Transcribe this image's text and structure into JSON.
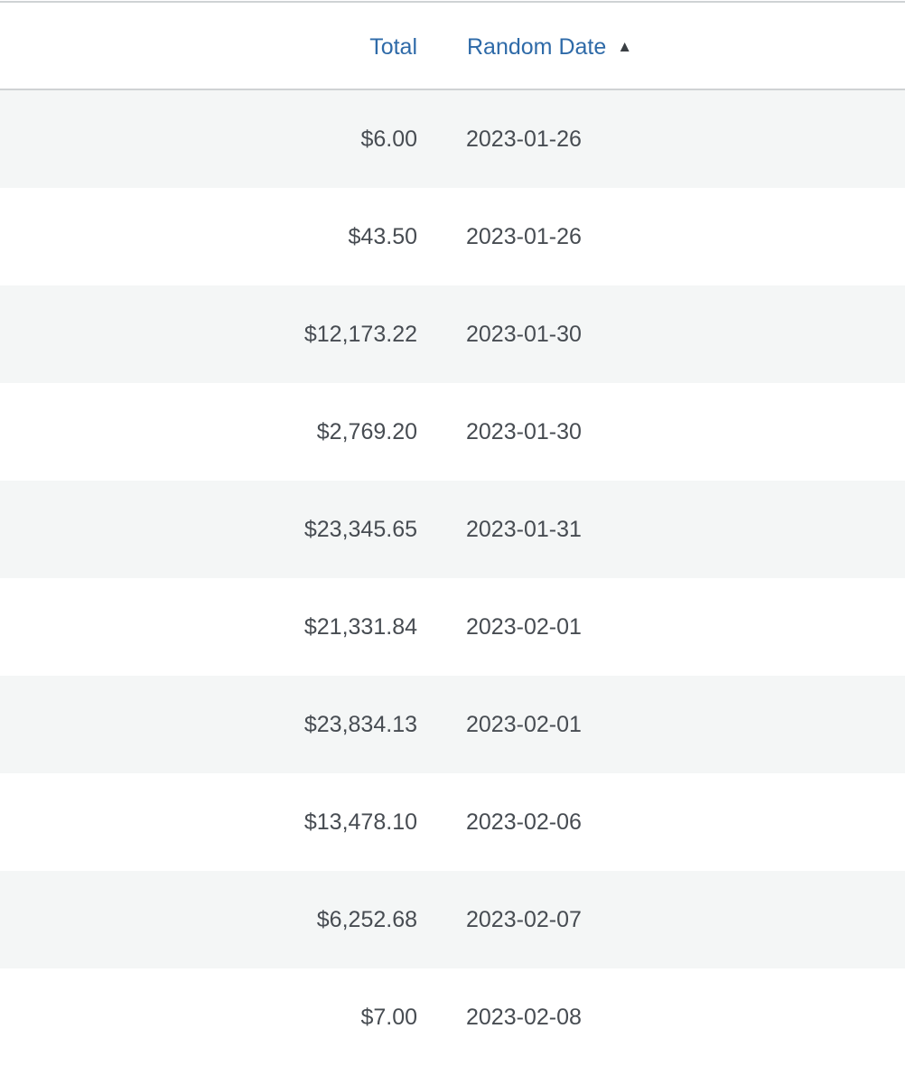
{
  "table": {
    "columns": [
      {
        "label": "Total"
      },
      {
        "label": "Random Date",
        "sort": "ascending",
        "sort_icon": "triangle-up-icon"
      }
    ],
    "rows": [
      {
        "total": "$6.00",
        "date": "2023-01-26"
      },
      {
        "total": "$43.50",
        "date": "2023-01-26"
      },
      {
        "total": "$12,173.22",
        "date": "2023-01-30"
      },
      {
        "total": "$2,769.20",
        "date": "2023-01-30"
      },
      {
        "total": "$23,345.65",
        "date": "2023-01-31"
      },
      {
        "total": "$21,331.84",
        "date": "2023-02-01"
      },
      {
        "total": "$23,834.13",
        "date": "2023-02-01"
      },
      {
        "total": "$13,478.10",
        "date": "2023-02-06"
      },
      {
        "total": "$6,252.68",
        "date": "2023-02-07"
      },
      {
        "total": "$7.00",
        "date": "2023-02-08"
      }
    ]
  },
  "colors": {
    "header_link": "#2e6aa8",
    "cell_text": "#474c52",
    "stripe": "#f4f6f6",
    "border": "#cfd2d4"
  }
}
